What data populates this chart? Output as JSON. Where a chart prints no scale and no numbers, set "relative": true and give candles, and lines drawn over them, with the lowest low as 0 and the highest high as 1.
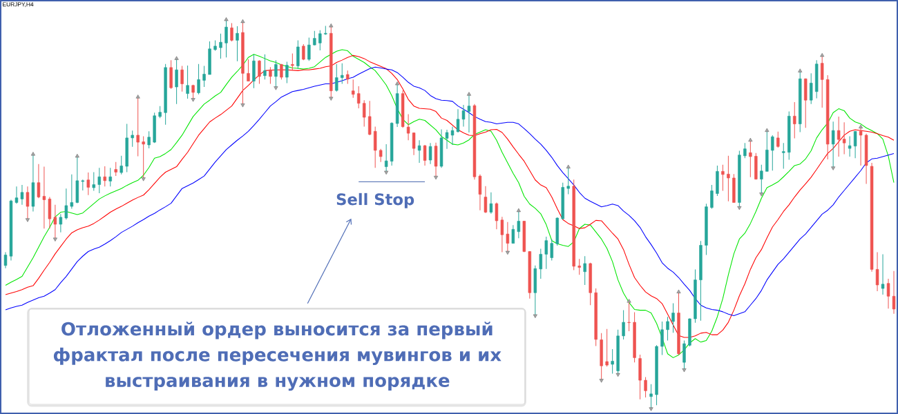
{
  "chart_data": {
    "type": "candlestick",
    "title": "EURJPY,H4",
    "relative": true,
    "tick_labels": false,
    "annotations": [
      {
        "text": "Sell Stop",
        "y": 0.583
      },
      "Отложенный ордер выносится за первый фрактал после пересечения мувингов и их выстраивания в нужном порядке"
    ],
    "categories": [
      null,
      null,
      null,
      null,
      null,
      null,
      null,
      null,
      null,
      null,
      null,
      null,
      null,
      null,
      null,
      null,
      null,
      null,
      null,
      null,
      null,
      null,
      null,
      null,
      null,
      null,
      null,
      null,
      null,
      null,
      null,
      null,
      null,
      null,
      null,
      null,
      null,
      null,
      null,
      null,
      null,
      null,
      null,
      null,
      null,
      null,
      null,
      null,
      null,
      null,
      null,
      null,
      null,
      null,
      null,
      null,
      null,
      null,
      null,
      null,
      null,
      null,
      null,
      null,
      null,
      null,
      null,
      null,
      null,
      null,
      null,
      null,
      null,
      null,
      null,
      null,
      null,
      null,
      null,
      null,
      null,
      null,
      null,
      null,
      null,
      null,
      null,
      null,
      null,
      null,
      null,
      null,
      null,
      null,
      null,
      null,
      null,
      null,
      null,
      null,
      null,
      null,
      null,
      null,
      null,
      null,
      null,
      null,
      null,
      null,
      null,
      null,
      null,
      null,
      null,
      null,
      null,
      null,
      null,
      null,
      null,
      null,
      null,
      null,
      null,
      null,
      null,
      null,
      null,
      null,
      null,
      null,
      null,
      null,
      null,
      null,
      null,
      null,
      null,
      null,
      null,
      null,
      null,
      null,
      null,
      null,
      null,
      null,
      null,
      null,
      null,
      null,
      null,
      null,
      null,
      null,
      null,
      null,
      null,
      null,
      null,
      null
    ],
    "ohlc": [
      [
        0.368,
        0.402,
        0.361,
        0.395
      ],
      [
        0.392,
        0.537,
        0.381,
        0.534
      ],
      [
        0.53,
        0.571,
        0.527,
        0.542
      ],
      [
        0.539,
        0.575,
        0.524,
        0.556
      ],
      [
        0.556,
        0.571,
        0.486,
        0.52
      ],
      [
        0.52,
        0.654,
        0.507,
        0.581
      ],
      [
        0.581,
        0.629,
        0.541,
        0.544
      ],
      [
        0.546,
        0.622,
        0.463,
        0.537
      ],
      [
        0.539,
        0.544,
        0.463,
        0.488
      ],
      [
        0.492,
        0.524,
        0.436,
        0.474
      ],
      [
        0.474,
        0.5,
        0.453,
        0.492
      ],
      [
        0.49,
        0.566,
        0.486,
        0.522
      ],
      [
        0.52,
        0.602,
        0.514,
        0.53
      ],
      [
        0.53,
        0.649,
        0.528,
        0.586
      ],
      [
        0.584,
        0.589,
        0.561,
        0.586
      ],
      [
        0.588,
        0.607,
        0.549,
        0.569
      ],
      [
        0.568,
        0.608,
        0.56,
        0.576
      ],
      [
        0.576,
        0.619,
        0.554,
        0.596
      ],
      [
        0.596,
        0.623,
        0.571,
        0.586
      ],
      [
        0.585,
        0.619,
        0.571,
        0.596
      ],
      [
        0.615,
        0.634,
        0.598,
        0.608
      ],
      [
        0.607,
        0.65,
        0.602,
        0.624
      ],
      [
        0.623,
        0.732,
        0.608,
        0.696
      ],
      [
        0.696,
        0.715,
        0.673,
        0.703
      ],
      [
        0.703,
        0.801,
        0.649,
        0.685
      ],
      [
        0.686,
        0.7,
        0.591,
        0.68
      ],
      [
        0.678,
        0.713,
        0.669,
        0.698
      ],
      [
        0.685,
        0.761,
        0.683,
        0.753
      ],
      [
        0.751,
        0.778,
        0.747,
        0.762
      ],
      [
        0.761,
        0.886,
        0.73,
        0.877
      ],
      [
        0.877,
        0.896,
        0.822,
        0.825
      ],
      [
        0.827,
        0.9,
        0.783,
        0.871
      ],
      [
        0.871,
        0.881,
        0.815,
        0.835
      ],
      [
        0.81,
        0.882,
        0.797,
        0.831
      ],
      [
        0.831,
        0.833,
        0.795,
        0.813
      ],
      [
        0.812,
        0.886,
        0.808,
        0.846
      ],
      [
        0.844,
        0.881,
        0.827,
        0.86
      ],
      [
        0.859,
        0.944,
        0.859,
        0.925
      ],
      [
        0.923,
        0.947,
        0.92,
        0.932
      ],
      [
        0.928,
        0.964,
        0.9,
        0.942
      ],
      [
        0.94,
        1.0,
        0.903,
        0.981
      ],
      [
        0.979,
        0.991,
        0.944,
        0.947
      ],
      [
        0.947,
        0.983,
        0.893,
        0.965
      ],
      [
        0.967,
        0.995,
        0.781,
        0.862
      ],
      [
        0.862,
        0.898,
        0.842,
        0.842
      ],
      [
        0.842,
        0.911,
        0.824,
        0.894
      ],
      [
        0.894,
        0.896,
        0.835,
        0.854
      ],
      [
        0.856,
        0.911,
        0.846,
        0.869
      ],
      [
        0.871,
        0.878,
        0.835,
        0.854
      ],
      [
        0.854,
        0.896,
        0.825,
        0.885
      ],
      [
        0.885,
        0.886,
        0.846,
        0.852
      ],
      [
        0.852,
        0.892,
        0.837,
        0.883
      ],
      [
        0.885,
        0.913,
        0.869,
        0.882
      ],
      [
        0.881,
        0.947,
        0.873,
        0.93
      ],
      [
        0.932,
        0.937,
        0.896,
        0.898
      ],
      [
        0.898,
        0.954,
        0.894,
        0.935
      ],
      [
        0.935,
        0.971,
        0.934,
        0.952
      ],
      [
        0.94,
        0.973,
        0.921,
        0.964
      ],
      [
        0.963,
        0.984,
        0.961,
        0.965
      ],
      [
        0.965,
        0.984,
        0.798,
        0.817
      ],
      [
        0.818,
        0.886,
        0.815,
        0.851
      ],
      [
        0.851,
        0.888,
        0.835,
        0.857
      ],
      [
        0.859,
        0.869,
        0.835,
        0.847
      ],
      [
        0.817,
        0.846,
        0.799,
        0.808
      ],
      [
        0.81,
        0.829,
        0.772,
        0.785
      ],
      [
        0.785,
        0.793,
        0.725,
        0.749
      ],
      [
        0.751,
        0.791,
        0.703,
        0.705
      ],
      [
        0.713,
        0.725,
        0.619,
        0.664
      ],
      [
        0.664,
        0.668,
        0.634,
        0.648
      ],
      [
        0.622,
        0.68,
        0.608,
        0.637
      ],
      [
        0.636,
        0.736,
        0.625,
        0.734
      ],
      [
        0.733,
        0.835,
        0.724,
        0.81
      ],
      [
        0.81,
        0.818,
        0.722,
        0.725
      ],
      [
        0.724,
        0.757,
        0.69,
        0.708
      ],
      [
        0.709,
        0.71,
        0.652,
        0.669
      ],
      [
        0.664,
        0.69,
        0.632,
        0.676
      ],
      [
        0.676,
        0.678,
        0.625,
        0.638
      ],
      [
        0.639,
        0.683,
        0.629,
        0.674
      ],
      [
        0.675,
        0.684,
        0.595,
        0.623
      ],
      [
        0.623,
        0.718,
        0.619,
        0.696
      ],
      [
        0.695,
        0.717,
        0.668,
        0.71
      ],
      [
        0.703,
        0.725,
        0.678,
        0.715
      ],
      [
        0.712,
        0.77,
        0.71,
        0.744
      ],
      [
        0.744,
        0.781,
        0.725,
        0.766
      ],
      [
        0.764,
        0.808,
        0.71,
        0.778
      ],
      [
        0.779,
        0.783,
        0.589,
        0.596
      ],
      [
        0.598,
        0.602,
        0.51,
        0.551
      ],
      [
        0.544,
        0.572,
        0.503,
        0.505
      ],
      [
        0.505,
        0.556,
        0.501,
        0.527
      ],
      [
        0.527,
        0.53,
        0.461,
        0.483
      ],
      [
        0.485,
        0.493,
        0.402,
        0.447
      ],
      [
        0.449,
        0.48,
        0.402,
        0.425
      ],
      [
        0.425,
        0.472,
        0.425,
        0.461
      ],
      [
        0.455,
        0.509,
        0.438,
        0.482
      ],
      [
        0.482,
        0.483,
        0.402,
        0.404
      ],
      [
        0.404,
        0.405,
        0.283,
        0.298
      ],
      [
        0.298,
        0.368,
        0.239,
        0.36
      ],
      [
        0.359,
        0.411,
        0.334,
        0.397
      ],
      [
        0.397,
        0.442,
        0.359,
        0.432
      ],
      [
        0.388,
        0.436,
        0.381,
        0.425
      ],
      [
        0.424,
        0.492,
        0.419,
        0.49
      ],
      [
        0.488,
        0.581,
        0.486,
        0.569
      ],
      [
        0.566,
        0.621,
        0.551,
        0.572
      ],
      [
        0.572,
        0.589,
        0.356,
        0.366
      ],
      [
        0.367,
        0.385,
        0.344,
        0.363
      ],
      [
        0.352,
        0.392,
        0.318,
        0.373
      ],
      [
        0.373,
        0.375,
        0.266,
        0.298
      ],
      [
        0.298,
        0.309,
        0.161,
        0.178
      ],
      [
        0.177,
        0.194,
        0.073,
        0.11
      ],
      [
        0.121,
        0.205,
        0.108,
        0.112
      ],
      [
        0.114,
        0.153,
        0.09,
        0.122
      ],
      [
        0.097,
        0.203,
        0.088,
        0.187
      ],
      [
        0.187,
        0.253,
        0.178,
        0.222
      ],
      [
        0.222,
        0.276,
        0.199,
        0.221
      ],
      [
        0.222,
        0.248,
        0.119,
        0.131
      ],
      [
        0.129,
        0.139,
        0.024,
        0.073
      ],
      [
        0.073,
        0.081,
        0.029,
        0.046
      ],
      [
        0.031,
        0.063,
        0.0,
        0.038
      ],
      [
        0.036,
        0.163,
        0.009,
        0.16
      ],
      [
        0.16,
        0.224,
        0.138,
        0.203
      ],
      [
        0.203,
        0.236,
        0.175,
        0.224
      ],
      [
        0.224,
        0.271,
        0.195,
        0.246
      ],
      [
        0.246,
        0.3,
        0.138,
        0.141
      ],
      [
        0.119,
        0.175,
        0.1,
        0.167
      ],
      [
        0.163,
        0.232,
        0.16,
        0.231
      ],
      [
        0.231,
        0.358,
        0.221,
        0.331
      ],
      [
        0.331,
        0.431,
        0.226,
        0.42
      ],
      [
        0.42,
        0.527,
        0.395,
        0.519
      ],
      [
        0.517,
        0.575,
        0.514,
        0.56
      ],
      [
        0.553,
        0.625,
        0.547,
        0.61
      ],
      [
        0.61,
        0.627,
        0.56,
        0.602
      ],
      [
        0.603,
        0.65,
        0.533,
        0.593
      ],
      [
        0.593,
        0.603,
        0.53,
        0.53
      ],
      [
        0.53,
        0.663,
        0.517,
        0.652
      ],
      [
        0.65,
        0.683,
        0.644,
        0.668
      ],
      [
        0.658,
        0.69,
        0.595,
        0.648
      ],
      [
        0.649,
        0.657,
        0.589,
        0.59
      ],
      [
        0.59,
        0.627,
        0.552,
        0.611
      ],
      [
        0.61,
        0.715,
        0.61,
        0.665
      ],
      [
        0.664,
        0.703,
        0.612,
        0.699
      ],
      [
        0.696,
        0.712,
        0.671,
        0.674
      ],
      [
        0.658,
        0.683,
        0.617,
        0.661
      ],
      [
        0.659,
        0.764,
        0.64,
        0.752
      ],
      [
        0.752,
        0.788,
        0.695,
        0.732
      ],
      [
        0.732,
        0.868,
        0.711,
        0.848
      ],
      [
        0.848,
        0.849,
        0.722,
        0.793
      ],
      [
        0.793,
        0.862,
        0.783,
        0.837
      ],
      [
        0.815,
        0.896,
        0.798,
        0.886
      ],
      [
        0.888,
        0.908,
        0.774,
        0.846
      ],
      [
        0.846,
        0.857,
        0.641,
        0.68
      ],
      [
        0.68,
        0.738,
        0.619,
        0.715
      ],
      [
        0.715,
        0.751,
        0.648,
        0.692
      ],
      [
        0.693,
        0.736,
        0.654,
        0.683
      ],
      [
        0.669,
        0.7,
        0.648,
        0.676
      ],
      [
        0.675,
        0.713,
        0.644,
        0.713
      ],
      [
        0.713,
        0.724,
        0.625,
        0.703
      ],
      [
        0.703,
        0.707,
        0.578,
        0.625
      ],
      [
        0.623,
        0.632,
        0.352,
        0.358
      ],
      [
        0.358,
        0.402,
        0.302,
        0.318
      ],
      [
        0.309,
        0.397,
        0.293,
        0.32
      ],
      [
        0.322,
        0.334,
        0.257,
        0.289
      ],
      [
        0.289,
        0.354,
        0.244,
        0.256
      ]
    ],
    "colors": [
      "#26a69a",
      "#26a69a",
      "#26a69a",
      "#26a69a",
      "#ef5350",
      "#26a69a",
      "#ef5350",
      "#ef5350",
      "#ef5350",
      "#ef5350",
      "#26a69a",
      "#26a69a",
      "#26a69a",
      "#26a69a",
      "#26a69a",
      "#ef5350",
      "#26a69a",
      "#26a69a",
      "#ef5350",
      "#26a69a",
      "#ef5350",
      "#26a69a",
      "#26a69a",
      "#26a69a",
      "#ef5350",
      "#ef5350",
      "#26a69a",
      "#26a69a",
      "#26a69a",
      "#26a69a",
      "#ef5350",
      "#26a69a",
      "#ef5350",
      "#26a69a",
      "#ef5350",
      "#26a69a",
      "#26a69a",
      "#26a69a",
      "#26a69a",
      "#26a69a",
      "#26a69a",
      "#ef5350",
      "#26a69a",
      "#ef5350",
      "#ef5350",
      "#26a69a",
      "#ef5350",
      "#26a69a",
      "#ef5350",
      "#26a69a",
      "#ef5350",
      "#26a69a",
      "#ef5350",
      "#26a69a",
      "#ef5350",
      "#26a69a",
      "#26a69a",
      "#26a69a",
      "#26a69a",
      "#ef5350",
      "#26a69a",
      "#26a69a",
      "#ef5350",
      "#ef5350",
      "#ef5350",
      "#ef5350",
      "#ef5350",
      "#ef5350",
      "#ef5350",
      "#26a69a",
      "#26a69a",
      "#26a69a",
      "#ef5350",
      "#ef5350",
      "#ef5350",
      "#26a69a",
      "#ef5350",
      "#26a69a",
      "#ef5350",
      "#26a69a",
      "#26a69a",
      "#26a69a",
      "#26a69a",
      "#26a69a",
      "#26a69a",
      "#ef5350",
      "#ef5350",
      "#ef5350",
      "#26a69a",
      "#ef5350",
      "#ef5350",
      "#ef5350",
      "#26a69a",
      "#26a69a",
      "#ef5350",
      "#ef5350",
      "#26a69a",
      "#26a69a",
      "#26a69a",
      "#26a69a",
      "#26a69a",
      "#26a69a",
      "#26a69a",
      "#ef5350",
      "#ef5350",
      "#26a69a",
      "#ef5350",
      "#ef5350",
      "#ef5350",
      "#ef5350",
      "#26a69a",
      "#26a69a",
      "#26a69a",
      "#ef5350",
      "#ef5350",
      "#ef5350",
      "#ef5350",
      "#26a69a",
      "#26a69a",
      "#26a69a",
      "#26a69a",
      "#26a69a",
      "#ef5350",
      "#26a69a",
      "#26a69a",
      "#26a69a",
      "#26a69a",
      "#26a69a",
      "#26a69a",
      "#26a69a",
      "#ef5350",
      "#ef5350",
      "#ef5350",
      "#26a69a",
      "#26a69a",
      "#ef5350",
      "#ef5350",
      "#26a69a",
      "#26a69a",
      "#26a69a",
      "#ef5350",
      "#26a69a",
      "#26a69a",
      "#ef5350",
      "#26a69a",
      "#ef5350",
      "#26a69a",
      "#26a69a",
      "#ef5350",
      "#ef5350",
      "#26a69a",
      "#ef5350",
      "#ef5350",
      "#26a69a",
      "#26a69a",
      "#ef5350",
      "#ef5350",
      "#ef5350",
      "#ef5350",
      "#26a69a",
      "#ef5350",
      "#ef5350"
    ],
    "series": [
      {
        "type": "line",
        "color": "#00e600",
        "values": [
          0.317,
          0.325,
          0.332,
          0.34,
          0.364,
          0.388,
          0.415,
          0.442,
          0.466,
          0.493,
          0.505,
          0.507,
          0.503,
          0.499,
          0.503,
          0.515,
          0.527,
          0.539,
          0.547,
          0.554,
          0.56,
          0.566,
          0.574,
          0.581,
          0.587,
          0.6,
          0.62,
          0.644,
          0.648,
          0.656,
          0.666,
          0.684,
          0.703,
          0.727,
          0.751,
          0.767,
          0.783,
          0.793,
          0.804,
          0.813,
          0.833,
          0.852,
          0.867,
          0.883,
          0.903,
          0.911,
          0.906,
          0.9,
          0.894,
          0.89,
          0.884,
          0.88,
          0.876,
          0.875,
          0.873,
          0.875,
          0.879,
          0.891,
          0.903,
          0.911,
          0.919,
          0.923,
          0.92,
          0.906,
          0.898,
          0.89,
          0.879,
          0.869,
          0.851,
          0.832,
          0.805,
          0.771,
          0.744,
          0.73,
          0.738,
          0.744,
          0.741,
          0.729,
          0.717,
          0.7,
          0.69,
          0.68,
          0.678,
          0.683,
          0.691,
          0.705,
          0.711,
          0.717,
          0.713,
          0.69,
          0.659,
          0.632,
          0.605,
          0.581,
          0.546,
          0.526,
          0.515,
          0.501,
          0.473,
          0.432,
          0.424,
          0.42,
          0.417,
          0.429,
          0.463,
          0.474,
          0.472,
          0.454,
          0.436,
          0.412,
          0.378,
          0.331,
          0.297,
          0.273,
          0.255,
          0.253,
          0.253,
          0.246,
          0.219,
          0.182,
          0.141,
          0.131,
          0.138,
          0.151,
          0.169,
          0.18,
          0.171,
          0.175,
          0.199,
          0.236,
          0.283,
          0.344,
          0.398,
          0.436,
          0.451,
          0.476,
          0.507,
          0.541,
          0.568,
          0.575,
          0.583,
          0.596,
          0.61,
          0.625,
          0.629,
          0.642,
          0.663,
          0.696,
          0.717,
          0.734,
          0.761,
          0.771,
          0.766,
          0.747,
          0.737,
          0.732,
          0.722,
          0.715,
          0.707,
          0.693,
          0.649,
          0.581
        ]
      },
      {
        "type": "line",
        "color": "#ff0000",
        "values": [
          0.293,
          0.297,
          0.301,
          0.306,
          0.312,
          0.316,
          0.335,
          0.356,
          0.376,
          0.398,
          0.417,
          0.436,
          0.452,
          0.46,
          0.465,
          0.469,
          0.476,
          0.485,
          0.495,
          0.505,
          0.513,
          0.52,
          0.528,
          0.536,
          0.543,
          0.549,
          0.563,
          0.579,
          0.595,
          0.608,
          0.615,
          0.622,
          0.641,
          0.659,
          0.681,
          0.703,
          0.72,
          0.737,
          0.747,
          0.756,
          0.767,
          0.778,
          0.798,
          0.818,
          0.831,
          0.845,
          0.858,
          0.869,
          0.87,
          0.871,
          0.871,
          0.871,
          0.87,
          0.869,
          0.871,
          0.871,
          0.873,
          0.875,
          0.879,
          0.881,
          0.89,
          0.896,
          0.903,
          0.908,
          0.905,
          0.9,
          0.892,
          0.886,
          0.88,
          0.874,
          0.862,
          0.846,
          0.822,
          0.795,
          0.778,
          0.772,
          0.771,
          0.77,
          0.764,
          0.747,
          0.741,
          0.729,
          0.717,
          0.709,
          0.703,
          0.702,
          0.707,
          0.711,
          0.717,
          0.718,
          0.71,
          0.693,
          0.673,
          0.654,
          0.636,
          0.612,
          0.588,
          0.575,
          0.568,
          0.544,
          0.514,
          0.486,
          0.476,
          0.47,
          0.463,
          0.465,
          0.474,
          0.484,
          0.483,
          0.467,
          0.451,
          0.436,
          0.409,
          0.371,
          0.337,
          0.317,
          0.3,
          0.29,
          0.283,
          0.27,
          0.243,
          0.215,
          0.188,
          0.183,
          0.183,
          0.187,
          0.194,
          0.196,
          0.19,
          0.19,
          0.202,
          0.222,
          0.253,
          0.29,
          0.321,
          0.358,
          0.388,
          0.409,
          0.439,
          0.467,
          0.486,
          0.507,
          0.524,
          0.544,
          0.562,
          0.578,
          0.595,
          0.615,
          0.636,
          0.656,
          0.669,
          0.686,
          0.703,
          0.713,
          0.717,
          0.715,
          0.713,
          0.711,
          0.707,
          0.702,
          0.698,
          0.69
        ]
      },
      {
        "type": "line",
        "color": "#0000ff",
        "values": [
          0.254,
          0.259,
          0.263,
          0.266,
          0.273,
          0.279,
          0.285,
          0.289,
          0.297,
          0.306,
          0.324,
          0.34,
          0.359,
          0.378,
          0.392,
          0.404,
          0.41,
          0.415,
          0.423,
          0.432,
          0.442,
          0.453,
          0.461,
          0.469,
          0.478,
          0.486,
          0.495,
          0.502,
          0.511,
          0.519,
          0.528,
          0.547,
          0.566,
          0.573,
          0.58,
          0.589,
          0.598,
          0.616,
          0.634,
          0.65,
          0.666,
          0.678,
          0.69,
          0.701,
          0.713,
          0.728,
          0.744,
          0.761,
          0.778,
          0.789,
          0.801,
          0.808,
          0.815,
          0.818,
          0.821,
          0.825,
          0.829,
          0.832,
          0.835,
          0.835,
          0.839,
          0.843,
          0.848,
          0.852,
          0.86,
          0.867,
          0.874,
          0.878,
          0.876,
          0.873,
          0.871,
          0.864,
          0.852,
          0.839,
          0.829,
          0.825,
          0.818,
          0.805,
          0.797,
          0.793,
          0.792,
          0.79,
          0.778,
          0.77,
          0.761,
          0.751,
          0.744,
          0.738,
          0.736,
          0.732,
          0.734,
          0.736,
          0.736,
          0.732,
          0.72,
          0.707,
          0.693,
          0.68,
          0.664,
          0.646,
          0.625,
          0.607,
          0.591,
          0.575,
          0.556,
          0.541,
          0.533,
          0.526,
          0.519,
          0.522,
          0.526,
          0.522,
          0.508,
          0.497,
          0.483,
          0.466,
          0.442,
          0.422,
          0.4,
          0.375,
          0.361,
          0.351,
          0.337,
          0.32,
          0.304,
          0.283,
          0.266,
          0.259,
          0.255,
          0.253,
          0.249,
          0.243,
          0.239,
          0.244,
          0.249,
          0.266,
          0.283,
          0.304,
          0.331,
          0.351,
          0.371,
          0.385,
          0.402,
          0.419,
          0.436,
          0.449,
          0.466,
          0.483,
          0.5,
          0.51,
          0.524,
          0.544,
          0.561,
          0.578,
          0.595,
          0.612,
          0.632,
          0.642,
          0.644,
          0.648,
          0.652,
          0.656
        ]
      },
      {
        "type": "line",
        "color": "#4a6ab0",
        "values": [
          null,
          null,
          null,
          null,
          null,
          null,
          null,
          null,
          null,
          null,
          null,
          null,
          null,
          null,
          null,
          null,
          null,
          null,
          null,
          null,
          null,
          null,
          null,
          null,
          null,
          null,
          null,
          null,
          null,
          null,
          null,
          null,
          null,
          null,
          null,
          null,
          null,
          null,
          null,
          null,
          null,
          null,
          null,
          null,
          null,
          null,
          null,
          null,
          null,
          null,
          null,
          null,
          null,
          null,
          null,
          null,
          null,
          null,
          null,
          null,
          null,
          null,
          null,
          null,
          0.583,
          0.583,
          0.583,
          0.583,
          0.583,
          0.583,
          0.583,
          0.583,
          0.583,
          0.583,
          0.583,
          0.583,
          0.583,
          null,
          null,
          null,
          null,
          null,
          null,
          null,
          null,
          null,
          null,
          null,
          null,
          null,
          null,
          null,
          null,
          null,
          null,
          null,
          null,
          null,
          null,
          null,
          null,
          null,
          null,
          null,
          null,
          null,
          null,
          null,
          null,
          null,
          null,
          null,
          null,
          null,
          null,
          null,
          null,
          null,
          null,
          null,
          null,
          null,
          null,
          null,
          null,
          null,
          null,
          null,
          null,
          null,
          null,
          null,
          null,
          null,
          null,
          null,
          null,
          null,
          null,
          null,
          null,
          null,
          null,
          null,
          null,
          null,
          null,
          null,
          null,
          null,
          null,
          null,
          null,
          null,
          null,
          null,
          null,
          null,
          null,
          null,
          null,
          null
        ]
      },
      {
        "type": "scatter",
        "color": "#a6a6a6",
        "marker": "triangle",
        "values": [
          null,
          null,
          null,
          null,
          null,
          0.654,
          null,
          null,
          null,
          null,
          null,
          null,
          null,
          0.649,
          null,
          null,
          null,
          null,
          null,
          null,
          null,
          null,
          null,
          null,
          0.801,
          null,
          null,
          null,
          null,
          null,
          null,
          0.9,
          null,
          null,
          null,
          null,
          null,
          null,
          null,
          null,
          1.0,
          null,
          null,
          0.995,
          null,
          null,
          null,
          null,
          null,
          null,
          null,
          null,
          null,
          null,
          null,
          null,
          null,
          null,
          null,
          0.984,
          null,
          null,
          null,
          null,
          null,
          null,
          null,
          null,
          null,
          null,
          null,
          0.835,
          null,
          null,
          null,
          null,
          null,
          null,
          null,
          null,
          null,
          null,
          null,
          null,
          0.808,
          null,
          null,
          null,
          null,
          null,
          null,
          null,
          null,
          0.509,
          null,
          null,
          null,
          null,
          null,
          null,
          null,
          null,
          0.621,
          null,
          null,
          null,
          null,
          null,
          null,
          null,
          null,
          null,
          null,
          0.276,
          null,
          null,
          null,
          null,
          null,
          null,
          null,
          null,
          0.3,
          null,
          null,
          null,
          null,
          null,
          null,
          null,
          null,
          null,
          null,
          null,
          null,
          0.69,
          null,
          null,
          0.715,
          null,
          null,
          null,
          null,
          null,
          0.868,
          null,
          null,
          null,
          0.908,
          null,
          null,
          null,
          null,
          null,
          null,
          0.724,
          null,
          null,
          null,
          null,
          null,
          null
        ]
      },
      {
        "type": "scatter",
        "color": "#a6a6a6",
        "marker": "triangle",
        "values": [
          null,
          null,
          null,
          null,
          0.486,
          null,
          null,
          null,
          null,
          0.436,
          null,
          null,
          null,
          null,
          null,
          null,
          null,
          null,
          null,
          null,
          null,
          null,
          null,
          null,
          null,
          0.591,
          null,
          null,
          null,
          null,
          null,
          null,
          null,
          null,
          0.795,
          null,
          null,
          null,
          null,
          null,
          null,
          null,
          null,
          0.781,
          null,
          null,
          null,
          null,
          null,
          0.825,
          null,
          null,
          null,
          null,
          null,
          null,
          null,
          null,
          null,
          0.798,
          null,
          null,
          null,
          null,
          null,
          null,
          null,
          null,
          null,
          0.608,
          null,
          null,
          null,
          null,
          null,
          null,
          null,
          null,
          0.595,
          null,
          null,
          null,
          null,
          null,
          null,
          null,
          null,
          null,
          null,
          null,
          null,
          0.402,
          null,
          null,
          null,
          null,
          0.239,
          null,
          null,
          null,
          null,
          null,
          null,
          null,
          null,
          null,
          null,
          null,
          0.073,
          null,
          null,
          0.088,
          null,
          null,
          null,
          null,
          null,
          0.0,
          null,
          null,
          null,
          null,
          null,
          0.1,
          null,
          null,
          null,
          null,
          null,
          null,
          null,
          null,
          null,
          0.517,
          null,
          null,
          null,
          0.552,
          null,
          null,
          null,
          null,
          null,
          null,
          null,
          null,
          null,
          null,
          null,
          null,
          0.619,
          null,
          null,
          null,
          null,
          null,
          null,
          null,
          null,
          null,
          null,
          null
        ]
      }
    ]
  }
}
